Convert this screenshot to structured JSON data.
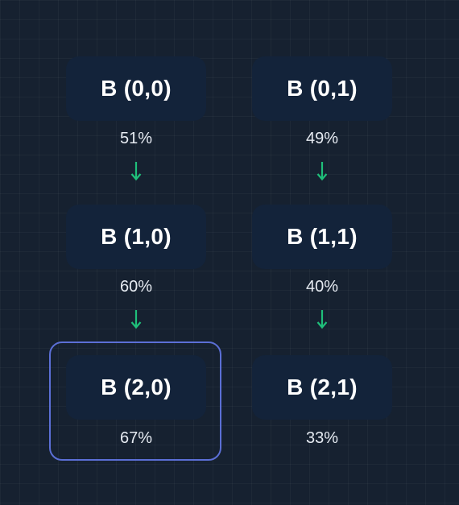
{
  "colors": {
    "background": "#162130",
    "block": "#13233a",
    "arrow": "#1fbf7a",
    "selection": "#5b6fd6"
  },
  "blocks": [
    {
      "label": "B (0,0)",
      "percent": "51%"
    },
    {
      "label": "B (0,1)",
      "percent": "49%"
    },
    {
      "label": "B (1,0)",
      "percent": "60%"
    },
    {
      "label": "B (1,1)",
      "percent": "40%"
    },
    {
      "label": "B (2,0)",
      "percent": "67%",
      "selected": true
    },
    {
      "label": "B (2,1)",
      "percent": "33%"
    }
  ],
  "arrows": [
    {
      "from": "B (0,0)",
      "to": "B (1,0)"
    },
    {
      "from": "B (0,1)",
      "to": "B (1,1)"
    },
    {
      "from": "B (1,0)",
      "to": "B (2,0)"
    },
    {
      "from": "B (1,1)",
      "to": "B (2,1)"
    }
  ]
}
